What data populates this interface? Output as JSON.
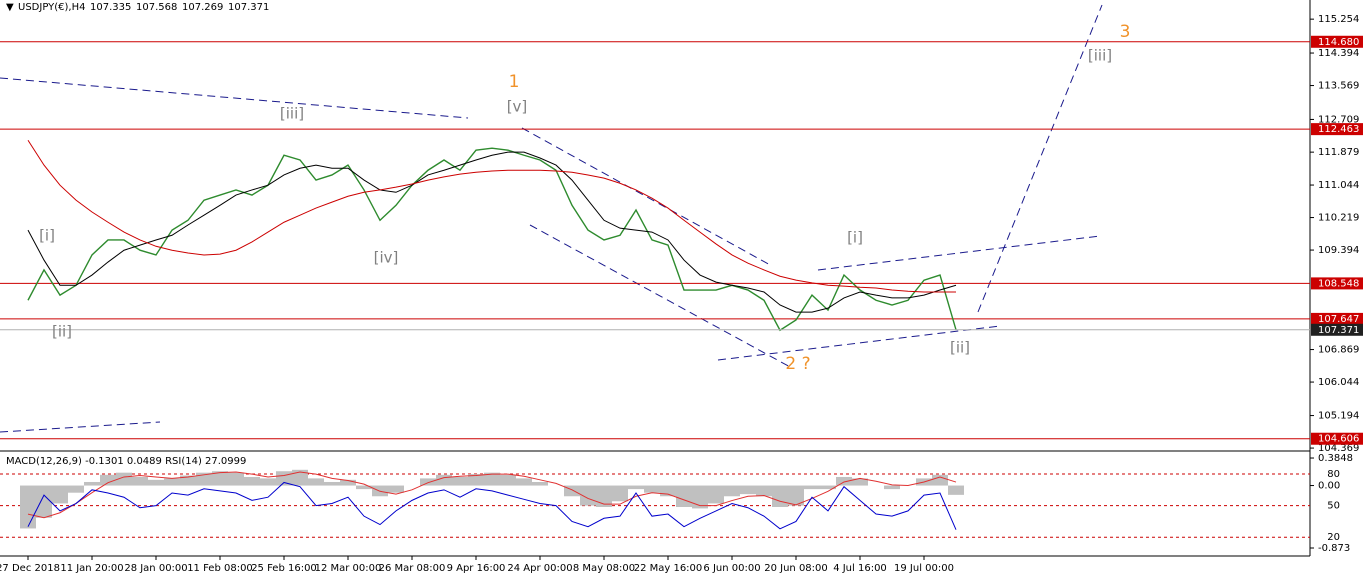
{
  "chart_data": [
    {
      "type": "line",
      "title": "USDJPY(€),H4",
      "ohlc": [
        107.335,
        107.568,
        107.269,
        107.371
      ],
      "categories": [
        "27 Dec 2018",
        null,
        null,
        null,
        "11 Jan 20:00",
        null,
        null,
        null,
        "28 Jan 00:00",
        null,
        null,
        null,
        "11 Feb 08:00",
        null,
        null,
        null,
        "25 Feb 16:00",
        null,
        null,
        null,
        "12 Mar 00:00",
        null,
        null,
        null,
        "26 Mar 08:00",
        null,
        null,
        null,
        "9 Apr 16:00",
        null,
        null,
        null,
        "24 Apr 00:00",
        null,
        null,
        null,
        "8 May 08:00",
        null,
        null,
        null,
        "22 May 16:00",
        null,
        null,
        null,
        "6 Jun 00:00",
        null,
        null,
        null,
        "20 Jun 08:00",
        null,
        null,
        null,
        "4 Jul 16:00",
        null,
        null,
        null,
        "19 Jul 00:00",
        null,
        null
      ],
      "series": [
        {
          "color": "#2e8b2e",
          "values": [
            108.12,
            108.89,
            108.25,
            108.5,
            109.27,
            109.65,
            109.65,
            109.39,
            109.27,
            109.9,
            110.15,
            110.66,
            110.79,
            110.92,
            110.79,
            111.04,
            111.8,
            111.68,
            111.17,
            111.3,
            111.55,
            110.92,
            110.15,
            110.53,
            111.04,
            111.42,
            111.68,
            111.42,
            111.93,
            111.98,
            111.93,
            111.8,
            111.68,
            111.42,
            110.53,
            109.9,
            109.65,
            109.77,
            110.41,
            109.65,
            109.52,
            108.38,
            108.38,
            108.38,
            108.5,
            108.38,
            108.12,
            107.36,
            107.62,
            108.25,
            107.87,
            108.76,
            108.38,
            108.12,
            108.0,
            108.12,
            108.63,
            108.76,
            107.37
          ]
        },
        {
          "color": "#000000",
          "values": [
            109.9,
            109.14,
            108.5,
            108.5,
            108.76,
            109.09,
            109.39,
            109.52,
            109.65,
            109.77,
            110.03,
            110.28,
            110.53,
            110.79,
            110.92,
            111.04,
            111.3,
            111.47,
            111.55,
            111.47,
            111.47,
            111.17,
            110.92,
            110.86,
            111.04,
            111.3,
            111.42,
            111.55,
            111.68,
            111.8,
            111.88,
            111.88,
            111.73,
            111.55,
            111.17,
            110.66,
            110.15,
            109.95,
            109.9,
            109.85,
            109.65,
            109.14,
            108.76,
            108.58,
            108.5,
            108.43,
            108.33,
            108.0,
            107.82,
            107.82,
            107.92,
            108.18,
            108.33,
            108.25,
            108.18,
            108.18,
            108.25,
            108.38,
            108.5
          ]
        },
        {
          "color": "#cc0000",
          "values": [
            112.18,
            111.55,
            111.04,
            110.66,
            110.36,
            110.1,
            109.85,
            109.65,
            109.49,
            109.39,
            109.32,
            109.27,
            109.29,
            109.39,
            109.6,
            109.85,
            110.1,
            110.28,
            110.46,
            110.61,
            110.76,
            110.86,
            110.92,
            110.99,
            111.07,
            111.17,
            111.25,
            111.32,
            111.37,
            111.4,
            111.42,
            111.42,
            111.42,
            111.4,
            111.37,
            111.3,
            111.22,
            111.09,
            110.92,
            110.71,
            110.46,
            110.15,
            109.85,
            109.55,
            109.27,
            109.06,
            108.89,
            108.73,
            108.63,
            108.56,
            108.5,
            108.48,
            108.45,
            108.43,
            108.38,
            108.35,
            108.33,
            108.33,
            108.33
          ]
        }
      ],
      "ylim": [
        104.32,
        115.74
      ],
      "yticks": [
        115.254,
        114.394,
        113.569,
        112.709,
        111.879,
        111.044,
        110.219,
        109.394,
        106.869,
        106.044,
        105.194,
        104.369
      ],
      "levels": [
        {
          "value": 114.68,
          "label": "114.680"
        },
        112.463,
        108.548,
        107.647,
        104.606
      ],
      "level_color": "#cc0000",
      "last": 107.371,
      "annotations": [
        {
          "text": "1",
          "color": "#f0922a"
        },
        {
          "text": "[v]",
          "color": "#808080"
        },
        {
          "text": "[iii]",
          "color": "#808080"
        },
        {
          "text": "[iv]",
          "color": "#808080"
        },
        {
          "text": "[i]",
          "color": "#808080"
        },
        {
          "text": "[ii]",
          "color": "#808080"
        },
        {
          "text": "[i]",
          "color": "#808080"
        },
        {
          "text": "[ii]",
          "color": "#808080"
        },
        {
          "text": "2 ?",
          "color": "#f0922a"
        },
        {
          "text": "3",
          "color": "#f0922a"
        },
        {
          "text": "[iii]",
          "color": "#808080"
        }
      ]
    },
    {
      "type": "indicator",
      "title": "MACD(12,26,9) -0.1301 0.0489 RSI(14) 27.0999",
      "ylim": [
        -0.943,
        0.455
      ],
      "yticks": [
        0.3848,
        {
          "value": 0,
          "label": "0.00"
        },
        -0.873
      ],
      "y2lim": [
        5,
        100
      ],
      "y2ticks": [
        80,
        50,
        20
      ],
      "series": [
        {
          "type": "bar",
          "color": "#c0c0c0",
          "values": [
            -0.6,
            -0.45,
            -0.25,
            -0.1,
            0.05,
            0.15,
            0.18,
            0.12,
            0.08,
            0.1,
            0.14,
            0.18,
            0.2,
            0.18,
            0.12,
            0.1,
            0.2,
            0.22,
            0.1,
            0.05,
            0.08,
            -0.05,
            -0.15,
            -0.1,
            0.0,
            0.1,
            0.15,
            0.12,
            0.16,
            0.18,
            0.15,
            0.1,
            0.05,
            0.0,
            -0.15,
            -0.28,
            -0.3,
            -0.22,
            -0.05,
            -0.1,
            -0.15,
            -0.3,
            -0.32,
            -0.25,
            -0.15,
            -0.12,
            -0.15,
            -0.3,
            -0.28,
            -0.05,
            -0.05,
            0.12,
            0.1,
            0.0,
            -0.05,
            0.0,
            0.1,
            0.15,
            -0.1301
          ]
        },
        {
          "type": "line",
          "color": "#e03030",
          "values": [
            -0.4,
            -0.45,
            -0.38,
            -0.25,
            -0.1,
            0.04,
            0.12,
            0.14,
            0.12,
            0.1,
            0.12,
            0.15,
            0.18,
            0.19,
            0.16,
            0.12,
            0.14,
            0.19,
            0.16,
            0.1,
            0.07,
            0.02,
            -0.08,
            -0.12,
            -0.06,
            0.04,
            0.11,
            0.13,
            0.14,
            0.16,
            0.16,
            0.13,
            0.08,
            0.03,
            -0.06,
            -0.18,
            -0.26,
            -0.26,
            -0.15,
            -0.1,
            -0.12,
            -0.2,
            -0.28,
            -0.28,
            -0.21,
            -0.15,
            -0.14,
            -0.22,
            -0.27,
            -0.18,
            -0.08,
            0.05,
            0.1,
            0.06,
            0.01,
            0.0,
            0.05,
            0.12,
            0.0489
          ]
        },
        {
          "type": "line",
          "color": "#0000cc",
          "axis": "y2",
          "values": [
            30,
            60,
            45,
            52,
            65,
            62,
            58,
            48,
            50,
            62,
            60,
            66,
            64,
            62,
            55,
            58,
            72,
            68,
            50,
            52,
            58,
            40,
            32,
            45,
            55,
            62,
            65,
            58,
            66,
            64,
            60,
            56,
            52,
            50,
            35,
            30,
            38,
            40,
            62,
            40,
            42,
            30,
            38,
            45,
            52,
            48,
            40,
            28,
            35,
            58,
            45,
            68,
            55,
            42,
            40,
            45,
            60,
            62,
            27.0999
          ]
        }
      ]
    }
  ]
}
